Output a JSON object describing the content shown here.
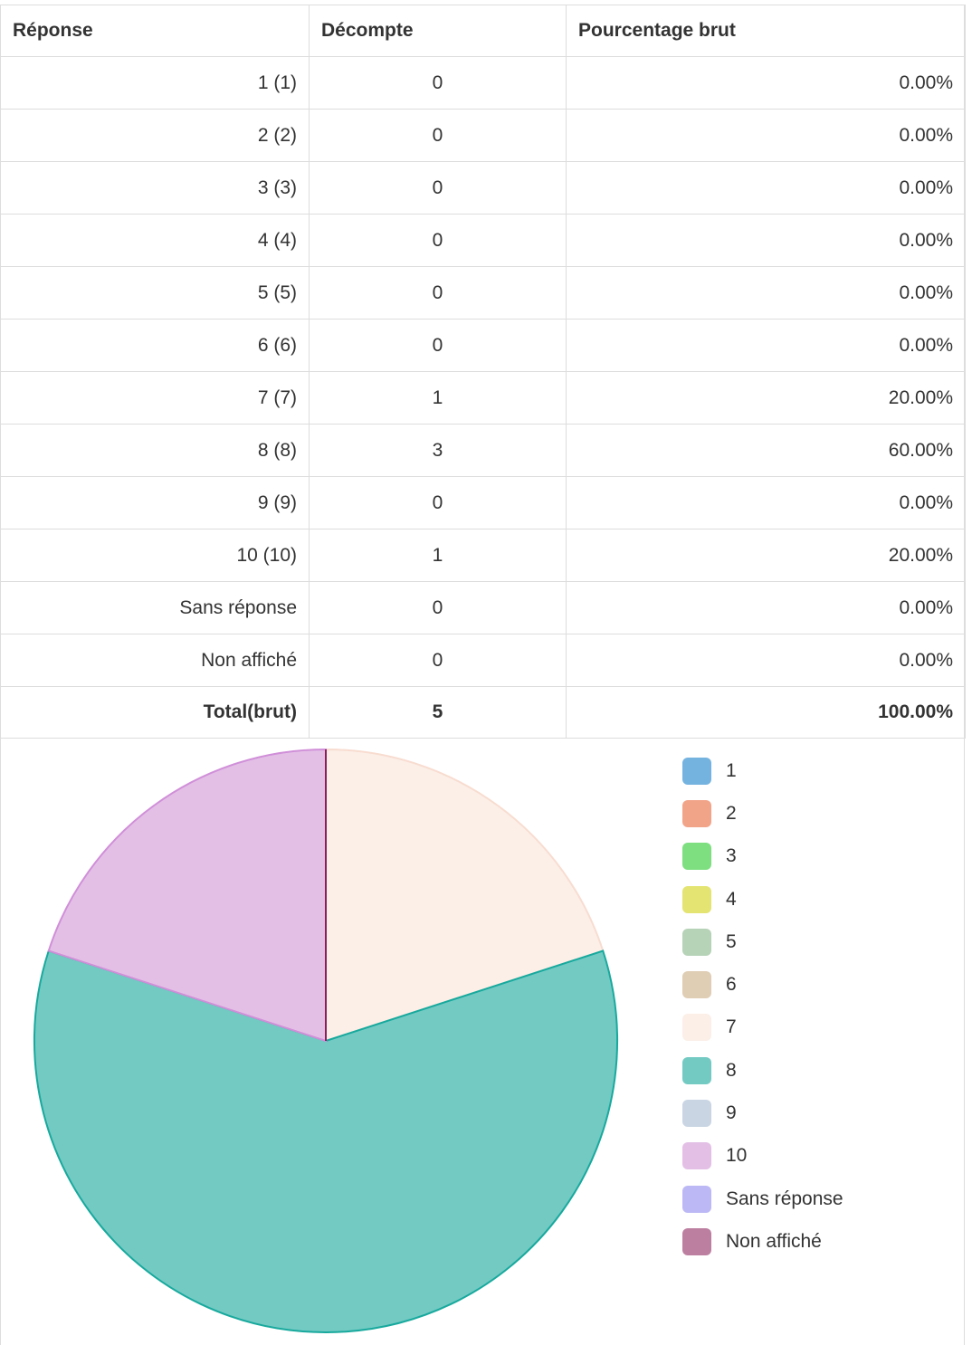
{
  "table": {
    "headers": [
      "Réponse",
      "Décompte",
      "Pourcentage brut"
    ],
    "rows": [
      {
        "response": "1 (1)",
        "count": "0",
        "percent": "0.00%"
      },
      {
        "response": "2 (2)",
        "count": "0",
        "percent": "0.00%"
      },
      {
        "response": "3 (3)",
        "count": "0",
        "percent": "0.00%"
      },
      {
        "response": "4 (4)",
        "count": "0",
        "percent": "0.00%"
      },
      {
        "response": "5 (5)",
        "count": "0",
        "percent": "0.00%"
      },
      {
        "response": "6 (6)",
        "count": "0",
        "percent": "0.00%"
      },
      {
        "response": "7 (7)",
        "count": "1",
        "percent": "20.00%"
      },
      {
        "response": "8 (8)",
        "count": "3",
        "percent": "60.00%"
      },
      {
        "response": "9 (9)",
        "count": "0",
        "percent": "0.00%"
      },
      {
        "response": "10 (10)",
        "count": "1",
        "percent": "20.00%"
      },
      {
        "response": "Sans réponse",
        "count": "0",
        "percent": "0.00%"
      },
      {
        "response": "Non affiché",
        "count": "0",
        "percent": "0.00%"
      }
    ],
    "total": {
      "response": "Total(brut)",
      "count": "5",
      "percent": "100.00%"
    }
  },
  "chart_data": {
    "type": "pie",
    "categories": [
      "1",
      "2",
      "3",
      "4",
      "5",
      "6",
      "7",
      "8",
      "9",
      "10",
      "Sans réponse",
      "Non affiché"
    ],
    "values": [
      0,
      0,
      0,
      0,
      0,
      0,
      1,
      3,
      0,
      1,
      0,
      0
    ],
    "colors": [
      "#74b3e0",
      "#f2a489",
      "#7ddf80",
      "#e3e472",
      "#b6d2b7",
      "#dfcdb4",
      "#fbefe8",
      "#72cac3",
      "#c9d5e3",
      "#e3bfe6",
      "#bcb8f5",
      "#bd7fa0"
    ],
    "border_colors": [
      "#4a90c8",
      "#e07a5a",
      "#4cc24f",
      "#c8c93a",
      "#8db68e",
      "#c4ab88",
      "#f8dcd0",
      "#18a99d",
      "#a3b3c8",
      "#d08fd8",
      "#8f89e8",
      "#8a1f5a"
    ],
    "legend_position": "right",
    "title": "",
    "start_angle": "top, clockwise"
  }
}
